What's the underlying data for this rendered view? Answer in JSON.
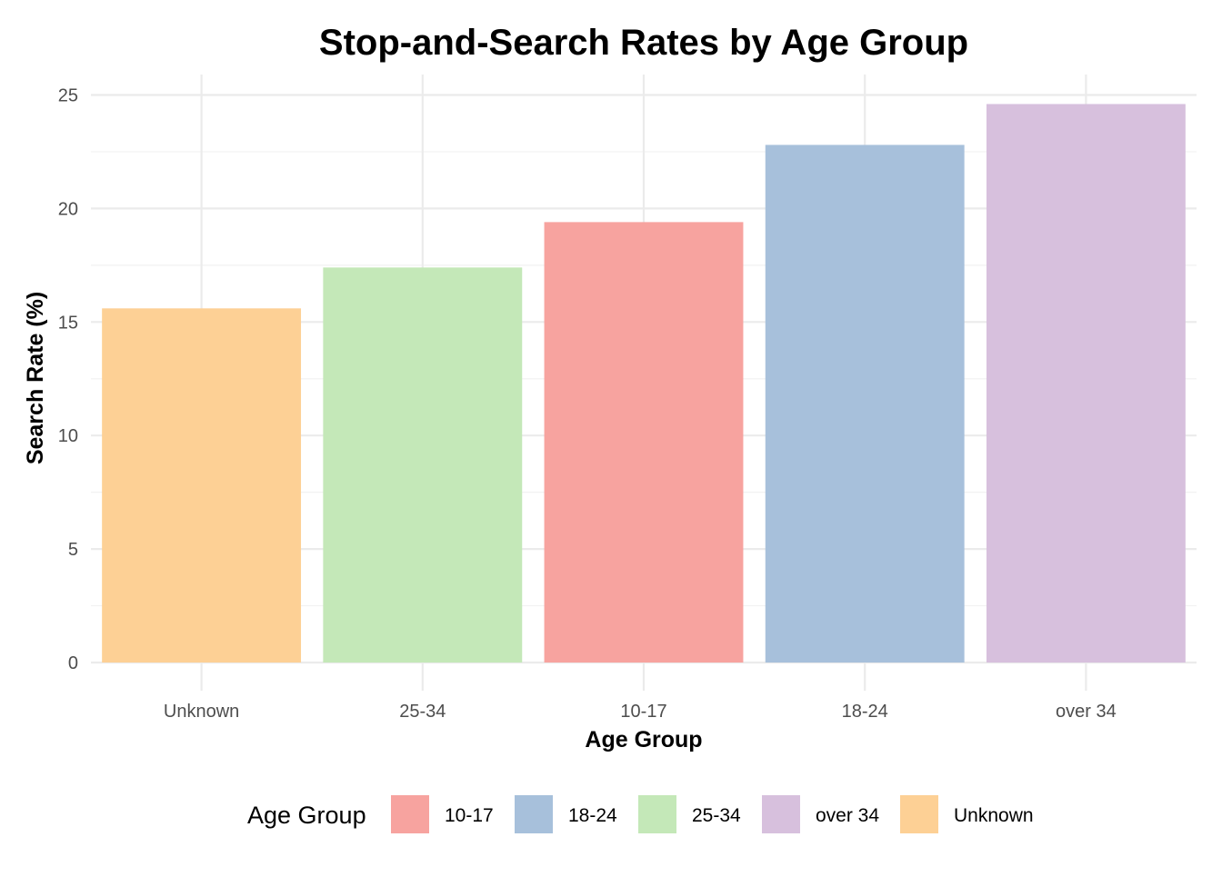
{
  "chart_data": {
    "type": "bar",
    "title": "Stop-and-Search Rates by Age Group",
    "xlabel": "Age Group",
    "ylabel": "Search Rate (%)",
    "ylim": [
      0,
      25
    ],
    "yticks": [
      "0",
      "5",
      "10",
      "15",
      "20",
      "25"
    ],
    "categories": [
      "Unknown",
      "25-34",
      "10-17",
      "18-24",
      "over 34"
    ],
    "values": [
      15.6,
      17.4,
      19.4,
      22.8,
      24.6
    ],
    "colors": {
      "Unknown": "#FDD095",
      "25-34": "#C4E8B8",
      "10-17": "#F7A39F",
      "18-24": "#A7C0DB",
      "over 34": "#D7C0DD"
    },
    "grid": true,
    "legend": {
      "title": "Age Group",
      "position": "bottom",
      "entries": [
        "10-17",
        "18-24",
        "25-34",
        "over 34",
        "Unknown"
      ]
    }
  }
}
